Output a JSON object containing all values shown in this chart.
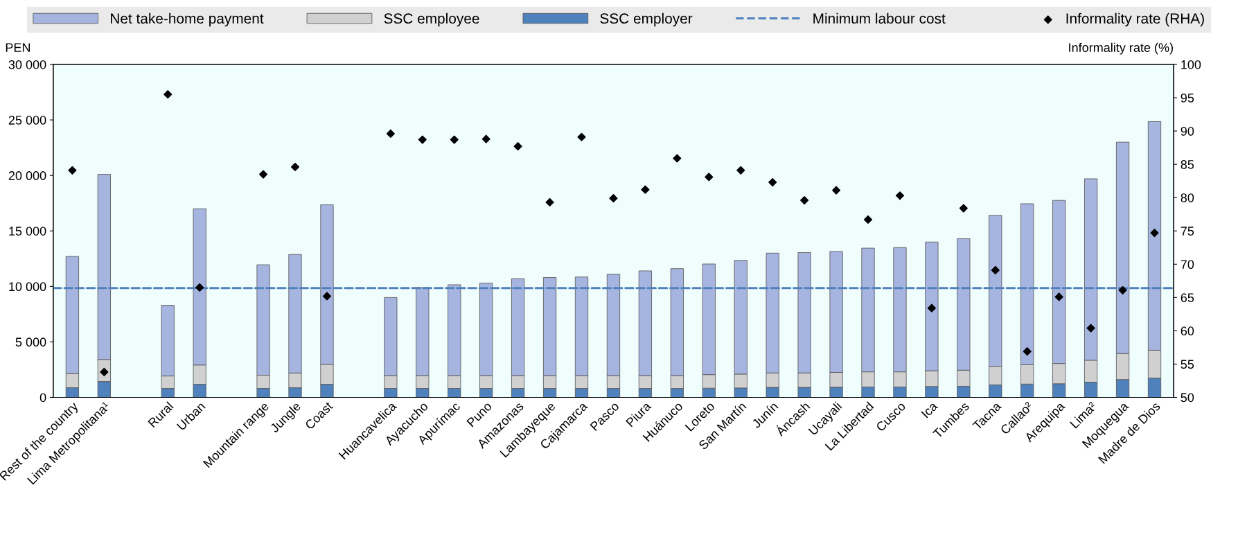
{
  "chart_data": {
    "type": "bar",
    "stacked": true,
    "legend": "top",
    "grid": false,
    "ylabel": "PEN",
    "y2label": "Informality rate (%)",
    "categories": [
      "Rest of the country",
      "Lima Metropolitana¹",
      null,
      "Rural",
      "Urban",
      null,
      "Mountain range",
      "Jungle",
      "Coast",
      null,
      "Huancavelica",
      "Ayacucho",
      "Apurímac",
      "Puno",
      "Amazonas",
      "Lambayeque",
      "Cajamarca",
      "Pasco",
      "Piura",
      "Huánuco",
      "Loreto",
      "San Martín",
      "Junín",
      "Áncash",
      "Ucayali",
      "La Libertad",
      "Cusco",
      "Ica",
      "Tumbes",
      "Tacna",
      "Callao²",
      "Arequipa",
      "Lima²",
      "Moquegua",
      "Madre de Dios"
    ],
    "series": [
      {
        "name": "SSC employer",
        "color": "#4f81bd",
        "values": [
          870,
          1430,
          null,
          810,
          1180,
          null,
          810,
          870,
          1180,
          null,
          810,
          810,
          810,
          810,
          810,
          810,
          810,
          810,
          810,
          810,
          830,
          850,
          900,
          900,
          920,
          940,
          940,
          980,
          1000,
          1130,
          1200,
          1230,
          1370,
          1610,
          1740
        ]
      },
      {
        "name": "SSC employee",
        "color": "#d0d0d0",
        "values": [
          1280,
          1990,
          null,
          1120,
          1740,
          null,
          1190,
          1330,
          1800,
          null,
          1150,
          1150,
          1150,
          1150,
          1150,
          1150,
          1150,
          1150,
          1150,
          1150,
          1220,
          1250,
          1300,
          1300,
          1330,
          1360,
          1360,
          1420,
          1450,
          1670,
          1750,
          1820,
          1980,
          2340,
          2510
        ]
      },
      {
        "name": "Net take-home payment",
        "color": "#a6b4e0",
        "values": [
          10550,
          16680,
          null,
          6370,
          14080,
          null,
          9950,
          10680,
          14370,
          null,
          7040,
          7940,
          8190,
          8340,
          8740,
          8840,
          8890,
          9140,
          9440,
          9640,
          9970,
          10250,
          10800,
          10850,
          10900,
          11150,
          11200,
          11600,
          11850,
          13600,
          14500,
          14700,
          16350,
          19050,
          20600
        ]
      },
      {
        "name": "Informality rate (RHA)",
        "type": "scatter",
        "axis": "y2",
        "marker": "diamond",
        "color": "#000000",
        "values": [
          84.1,
          53.8,
          null,
          95.5,
          66.5,
          null,
          83.5,
          84.6,
          65.2,
          null,
          89.6,
          88.7,
          88.7,
          88.8,
          87.7,
          79.3,
          89.1,
          79.9,
          81.2,
          85.9,
          83.1,
          84.1,
          82.3,
          79.6,
          81.1,
          76.7,
          80.3,
          63.4,
          78.4,
          69.1,
          56.9,
          65.1,
          60.4,
          66.1,
          74.7
        ]
      }
    ],
    "ref_lines": [
      {
        "axis": "y",
        "value": 9850,
        "label": "Minimum labour cost",
        "color": "#4f81bd",
        "line_style": "dashed"
      }
    ],
    "ylim": [
      0,
      30000
    ],
    "yticks": [
      0,
      {
        "value": 5000,
        "label": "5 000"
      },
      {
        "value": 10000,
        "label": "10 000"
      },
      {
        "value": 15000,
        "label": "15 000"
      },
      {
        "value": 20000,
        "label": "20 000"
      },
      {
        "value": 25000,
        "label": "25 000"
      },
      {
        "value": 30000,
        "label": "30 000"
      }
    ],
    "y2lim": [
      50,
      100
    ],
    "y2ticks": [
      50,
      55,
      60,
      65,
      70,
      75,
      80,
      85,
      90,
      95,
      100
    ]
  }
}
